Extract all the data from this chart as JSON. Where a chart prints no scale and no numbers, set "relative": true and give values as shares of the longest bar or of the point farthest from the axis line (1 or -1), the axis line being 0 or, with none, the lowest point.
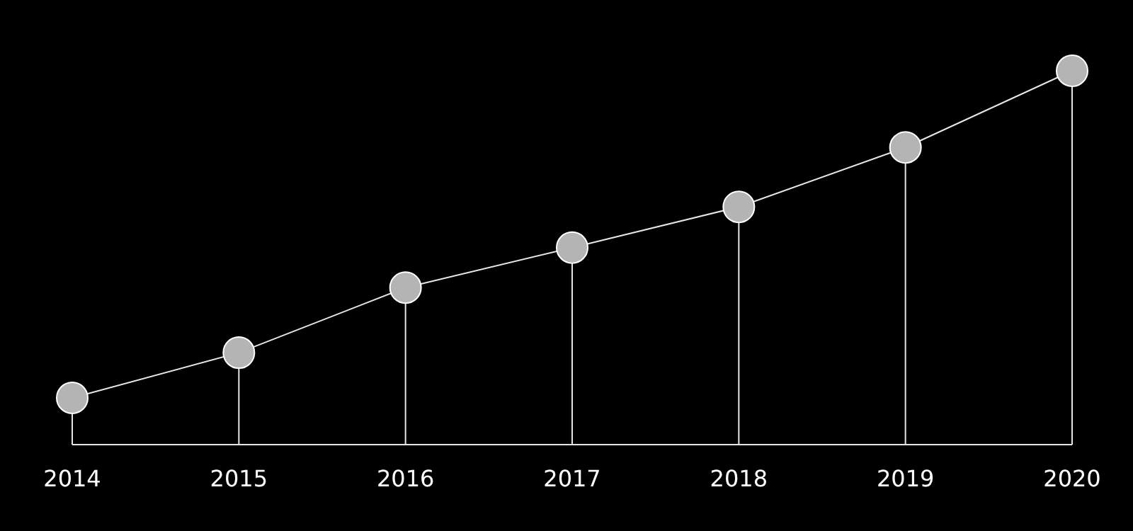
{
  "chart_data": {
    "type": "lollipop",
    "relative": true,
    "categories": [
      "2014",
      "2015",
      "2016",
      "2017",
      "2018",
      "2019",
      "2020"
    ],
    "series": [
      {
        "type": "line",
        "color": "#e6e6e6",
        "marker": "none",
        "values": [
          0.125,
          0.246,
          0.42,
          0.527,
          0.636,
          0.795,
          1
        ]
      },
      {
        "color": "#b4b4b4",
        "marker": "circle",
        "values": [
          0.125,
          0.246,
          0.42,
          0.527,
          0.636,
          0.795,
          1
        ]
      }
    ]
  }
}
